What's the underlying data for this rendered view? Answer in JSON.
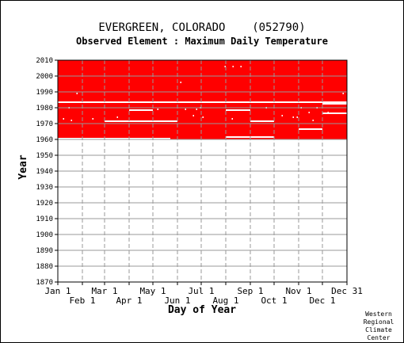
{
  "chart_data": {
    "type": "heatmap",
    "title": "EVERGREEN, COLORADO    (052790)",
    "subtitle": "Observed Element : Maximum Daily Temperature",
    "xlabel": "Day of Year",
    "ylabel": "Year",
    "xlim": [
      1,
      366
    ],
    "ylim": [
      1870,
      2010
    ],
    "yticks": [
      1870,
      1880,
      1890,
      1900,
      1910,
      1920,
      1930,
      1940,
      1950,
      1960,
      1970,
      1980,
      1990,
      2000,
      2010
    ],
    "xticks_top_row": [
      {
        "label": "Jan 1",
        "day": 1
      },
      {
        "label": "Mar 1",
        "day": 60
      },
      {
        "label": "May 1",
        "day": 121
      },
      {
        "label": "Jul 1",
        "day": 182
      },
      {
        "label": "Sep 1",
        "day": 244
      },
      {
        "label": "Nov 1",
        "day": 305
      },
      {
        "label": "Dec 31",
        "day": 366
      }
    ],
    "xticks_bottom_row": [
      {
        "label": "Feb 1",
        "day": 32
      },
      {
        "label": "Apr 1",
        "day": 91
      },
      {
        "label": "Jun 1",
        "day": 152
      },
      {
        "label": "Aug 1",
        "day": 213
      },
      {
        "label": "Oct 1",
        "day": 274
      },
      {
        "label": "Dec 1",
        "day": 335
      }
    ],
    "grid": true,
    "data_color": "#ff0000",
    "data_coverage": {
      "full_record_years": [
        1960,
        2010
      ],
      "partial_start": {
        "from_day": 1,
        "to_day": 143,
        "starting_year": 1960.5
      },
      "missing_segments": [
        {
          "year": 1983.5,
          "from_day": 1,
          "to_day": 366
        },
        {
          "year": 1971.5,
          "from_day": 60,
          "to_day": 152
        },
        {
          "year": 1978.5,
          "from_day": 91,
          "to_day": 121
        },
        {
          "year": 1978.5,
          "from_day": 213,
          "to_day": 244
        },
        {
          "year": 1961.5,
          "from_day": 213,
          "to_day": 274
        },
        {
          "year": 1971.5,
          "from_day": 244,
          "to_day": 274
        },
        {
          "year": 1983.5,
          "from_day": 244,
          "to_day": 274
        },
        {
          "year": 1966.5,
          "from_day": 305,
          "to_day": 335
        },
        {
          "year": 1982.5,
          "from_day": 335,
          "to_day": 366
        },
        {
          "year": 1976.5,
          "from_day": 335,
          "to_day": 366
        }
      ],
      "missing_days": [
        {
          "year": 1973,
          "day": 8
        },
        {
          "year": 1980,
          "day": 15
        },
        {
          "year": 1972,
          "day": 18
        },
        {
          "year": 1989,
          "day": 25
        },
        {
          "year": 1973,
          "day": 45
        },
        {
          "year": 1974,
          "day": 76
        },
        {
          "year": 1979,
          "day": 127
        },
        {
          "year": 1996,
          "day": 156
        },
        {
          "year": 1979,
          "day": 162
        },
        {
          "year": 1975,
          "day": 172
        },
        {
          "year": 1979,
          "day": 176
        },
        {
          "year": 1980,
          "day": 181
        },
        {
          "year": 1974,
          "day": 184
        },
        {
          "year": 2006,
          "day": 212
        },
        {
          "year": 2006,
          "day": 222
        },
        {
          "year": 2006,
          "day": 232
        },
        {
          "year": 1973,
          "day": 221
        },
        {
          "year": 1980,
          "day": 264
        },
        {
          "year": 1975,
          "day": 284
        },
        {
          "year": 1974,
          "day": 298
        },
        {
          "year": 1974,
          "day": 303
        },
        {
          "year": 1980,
          "day": 308
        },
        {
          "year": 1977,
          "day": 318
        },
        {
          "year": 1972,
          "day": 323
        },
        {
          "year": 1980,
          "day": 328
        },
        {
          "year": 1977,
          "day": 342
        },
        {
          "year": 1989,
          "day": 361
        }
      ]
    }
  },
  "footer": {
    "credit_lines": [
      "Western",
      "Regional",
      "Climate",
      "Center"
    ]
  }
}
